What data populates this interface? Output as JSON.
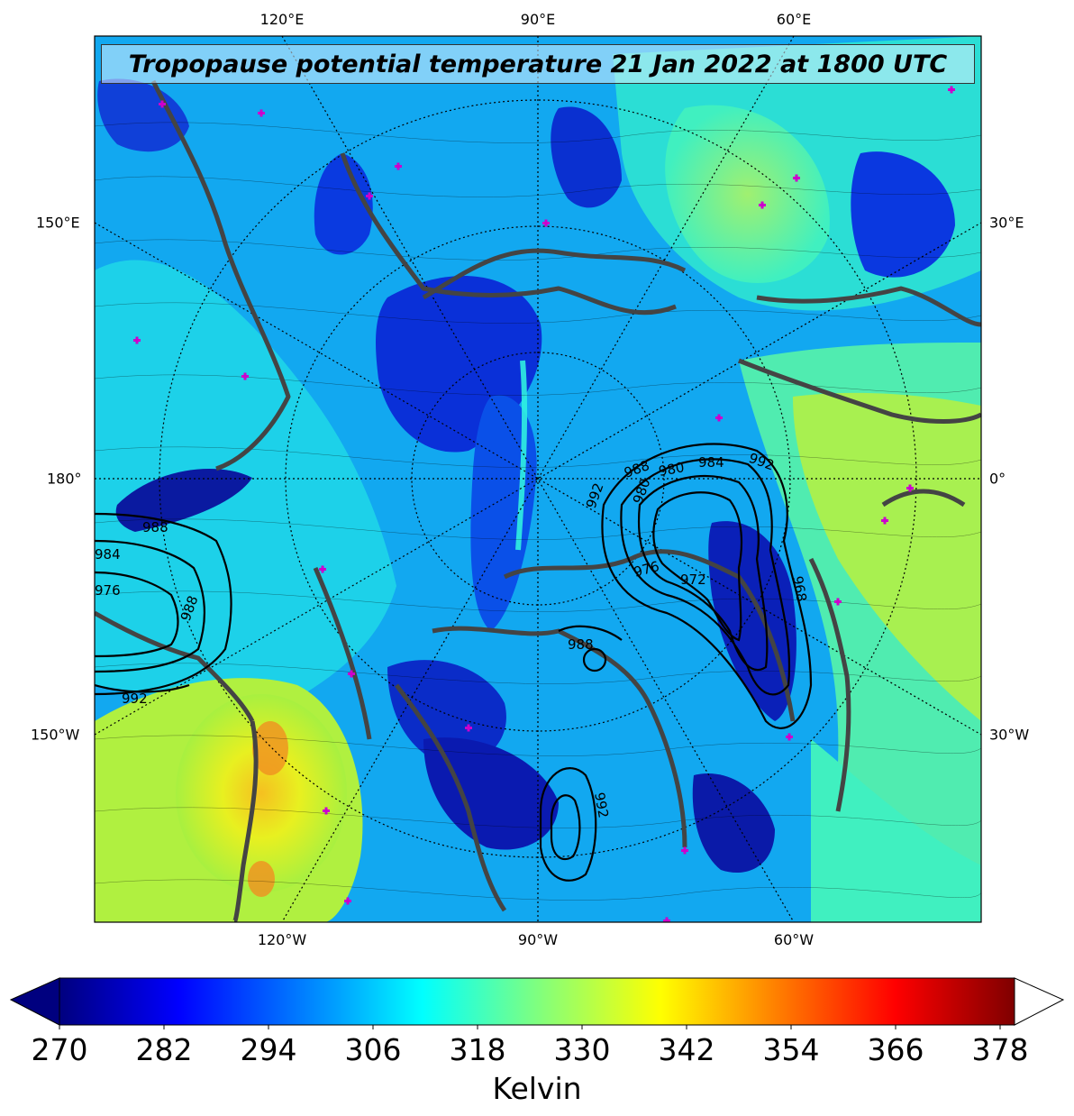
{
  "title": "Tropopause potential temperature 21 Jan 2022 at 1800 UTC",
  "axes": {
    "top": [
      "120°E",
      "90°E",
      "60°E"
    ],
    "bottom": [
      "120°W",
      "90°W",
      "60°W"
    ],
    "left": [
      "150°E",
      "180°",
      "150°W"
    ],
    "right": [
      "30°E",
      "0°",
      "30°W"
    ]
  },
  "pressure_contours": {
    "unit_labels": [
      "992",
      "988",
      "980",
      "984",
      "992",
      "980",
      "976",
      "972",
      "968",
      "988",
      "992",
      "984",
      "976",
      "988",
      "992",
      "988",
      "992"
    ]
  },
  "colorbar": {
    "ticks": [
      270,
      282,
      294,
      306,
      318,
      330,
      342,
      354,
      366,
      378
    ],
    "label": "Kelvin",
    "colormap": "jet",
    "colors": [
      "#00007f",
      "#0000ff",
      "#007fff",
      "#00ffff",
      "#7fff7f",
      "#ffff00",
      "#ff7f00",
      "#ff0000",
      "#7f0000"
    ]
  },
  "colors": {
    "coastline": "#444444",
    "markers": "#cc00cc",
    "contour": "#000000"
  }
}
